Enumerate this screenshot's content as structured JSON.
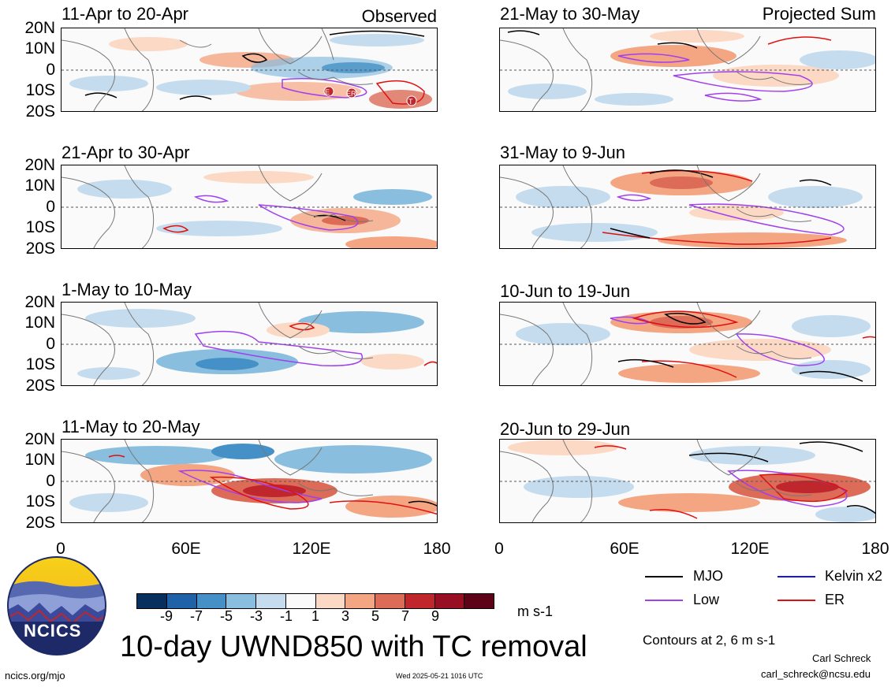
{
  "panels": {
    "observed": [
      {
        "title": "11-Apr to 20-Apr",
        "tag": "Observed"
      },
      {
        "title": "21-Apr to 30-Apr",
        "tag": ""
      },
      {
        "title": "1-May to 10-May",
        "tag": ""
      },
      {
        "title": "11-May to 20-May",
        "tag": ""
      }
    ],
    "projected": [
      {
        "title": "21-May to 30-May",
        "tag": "Projected Sum"
      },
      {
        "title": "31-May to 9-Jun",
        "tag": ""
      },
      {
        "title": "10-Jun to 19-Jun",
        "tag": ""
      },
      {
        "title": "20-Jun to 29-Jun",
        "tag": ""
      }
    ]
  },
  "lat_ticks": [
    "20N",
    "10N",
    "0",
    "10S",
    "20S"
  ],
  "lon_ticks": [
    "0",
    "60E",
    "120E",
    "180"
  ],
  "tc_markers": [
    "E",
    "ER",
    "T"
  ],
  "colorbar": {
    "colors": [
      "#08305e",
      "#1f62a8",
      "#4590c7",
      "#89bede",
      "#c4dcee",
      "#fafafa",
      "#fcd9c4",
      "#f4a582",
      "#dc6b58",
      "#c0272d",
      "#980f23",
      "#5e0218"
    ],
    "labels": [
      "-9",
      "-7",
      "-5",
      "-3",
      "-1",
      "1",
      "3",
      "5",
      "7",
      "9"
    ],
    "units": "m s-1"
  },
  "title": "10-day UWND850 with TC removal",
  "legend": [
    {
      "label": "MJO",
      "color": "#000000"
    },
    {
      "label": "Kelvin x2",
      "color": "#1515e0"
    },
    {
      "label": "Low",
      "color": "#a040ee"
    },
    {
      "label": "ER",
      "color": "#e01010"
    }
  ],
  "contour_note": "Contours at 2, 6 m s-1",
  "logo_text": "NCICS",
  "author": "Carl Schreck",
  "email": "carl_schreck@ncsu.edu",
  "url": "ncics.org/mjo",
  "timestamp": "Wed 2025-05-21 1016 UTC"
}
